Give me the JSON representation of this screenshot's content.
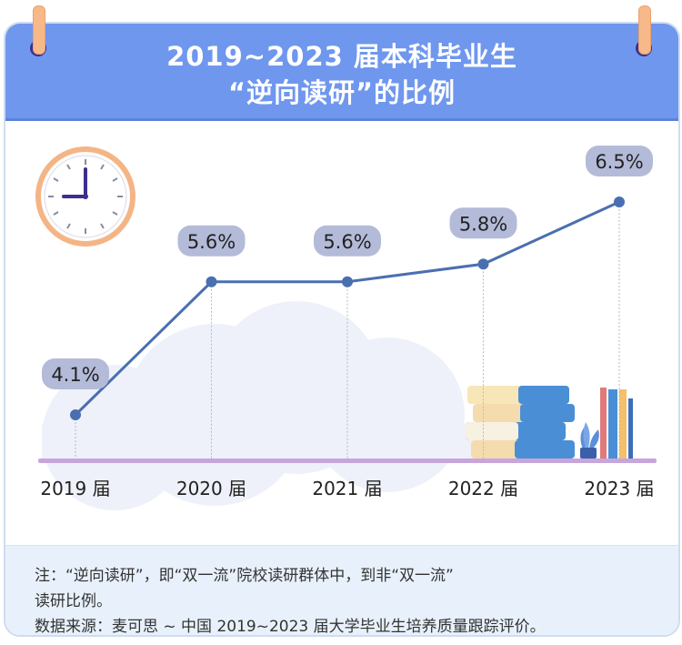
{
  "title": {
    "line1": "2019~2023 届本科毕业生",
    "line2": "“逆向读研”的比例"
  },
  "chart_data": {
    "type": "line",
    "categories": [
      "2019 届",
      "2020 届",
      "2021 届",
      "2022 届",
      "2023 届"
    ],
    "values": [
      4.1,
      5.6,
      5.6,
      5.8,
      6.5
    ],
    "value_labels": [
      "4.1%",
      "5.6%",
      "5.6%",
      "5.8%",
      "6.5%"
    ],
    "unit": "%",
    "ylim": [
      3.4,
      6.8
    ],
    "grid": false,
    "legend": "none",
    "line_color": "#4a6fb0",
    "label_bg": "#b4bbd9"
  },
  "notes": {
    "line1": "注：“逆向读研”，即“双一流”院校读研群体中，到非“双一流”",
    "line2": "读研比例。",
    "line3": "数据来源：麦可思 ~ 中国 2019~2023 届大学毕业生培养质量跟踪评价。"
  },
  "icons": [
    "clock-icon",
    "books-icon",
    "plant-icon",
    "cloud-icon"
  ],
  "colors": {
    "header": "#6f97ee",
    "note_bg": "#e8f1fb",
    "baseline": "#c7a6db"
  }
}
